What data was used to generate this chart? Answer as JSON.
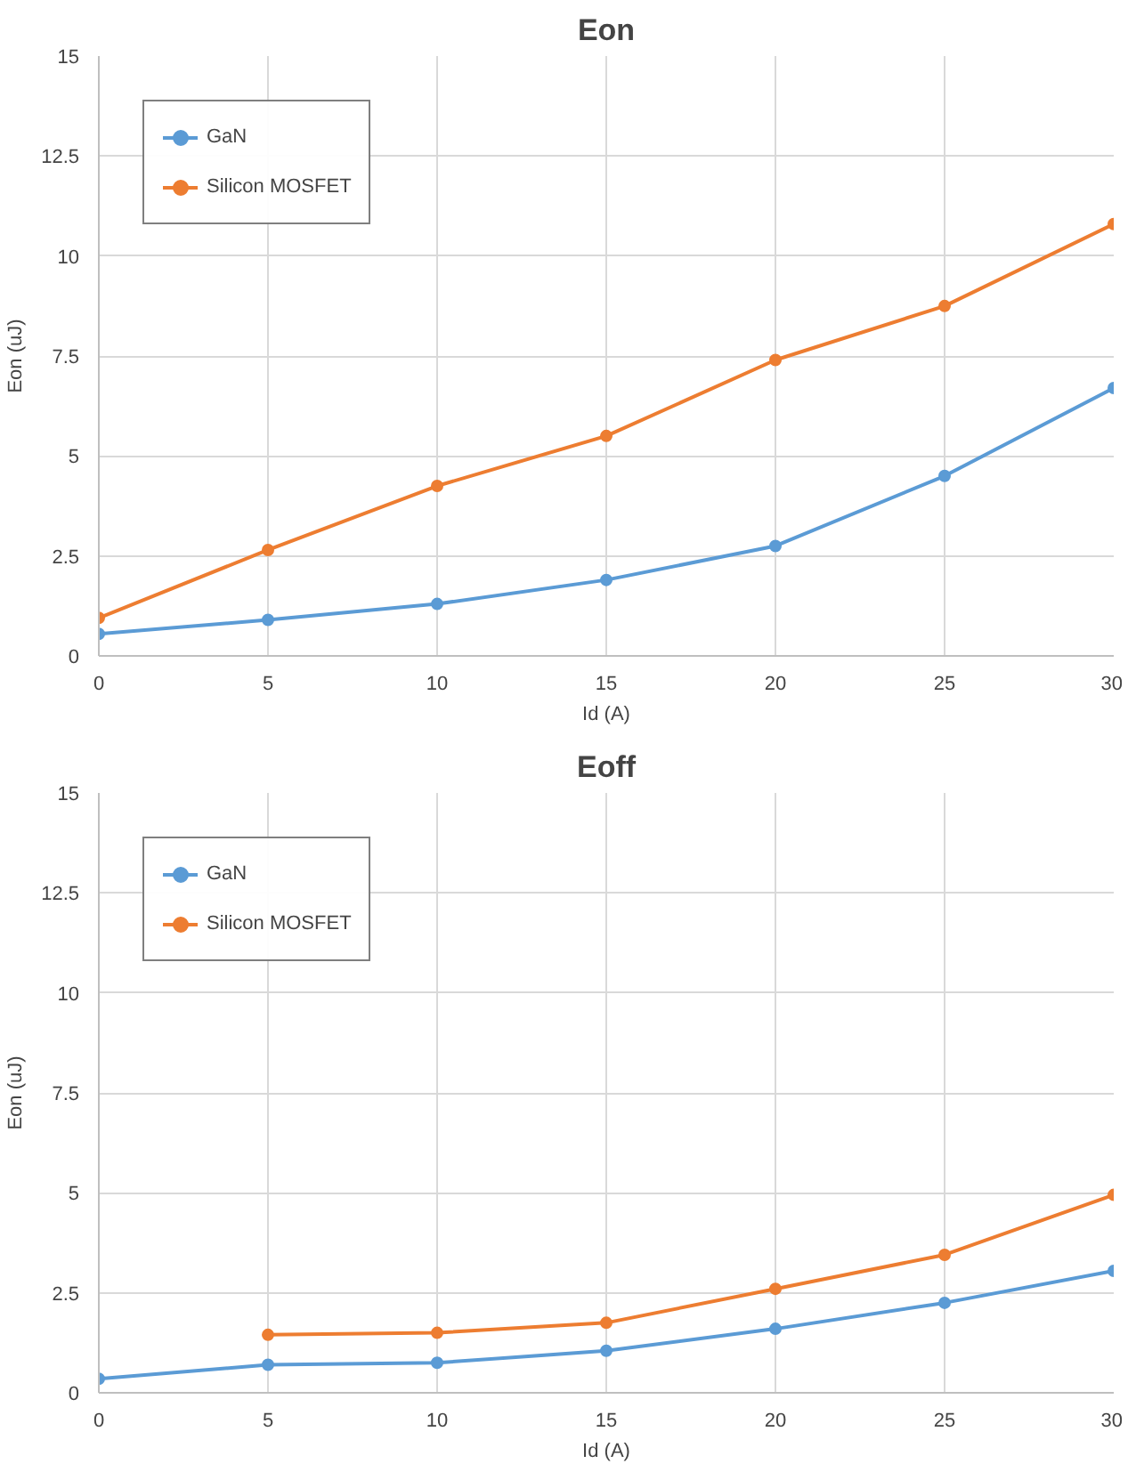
{
  "chart_data": [
    {
      "type": "line",
      "title": "Eon",
      "xlabel": "Id (A)",
      "ylabel": "Eon (uJ)",
      "x": [
        0,
        5,
        10,
        15,
        20,
        25,
        30
      ],
      "series": [
        {
          "name": "GaN",
          "color": "#5b9bd5",
          "values": [
            0.55,
            0.9,
            1.3,
            1.9,
            2.75,
            4.5,
            6.7
          ]
        },
        {
          "name": "Silicon MOSFET",
          "color": "#ed7d31",
          "values": [
            0.95,
            2.65,
            4.25,
            5.5,
            7.4,
            8.75,
            10.8
          ]
        }
      ],
      "xlim": [
        0,
        30
      ],
      "ylim": [
        0,
        15
      ],
      "xticks": [
        0,
        5,
        10,
        15,
        20,
        25,
        30
      ],
      "yticks": [
        0,
        2.5,
        5,
        7.5,
        10,
        12.5,
        15
      ],
      "grid": true,
      "legend": "top left",
      "marker": "circle",
      "line_style": "solid"
    },
    {
      "type": "line",
      "title": "Eoff",
      "xlabel": "Id (A)",
      "ylabel": "Eon (uJ)",
      "x": [
        0,
        5,
        10,
        15,
        20,
        25,
        30
      ],
      "series": [
        {
          "name": "GaN",
          "color": "#5b9bd5",
          "values": [
            0.35,
            0.7,
            0.75,
            1.05,
            1.6,
            2.25,
            3.05
          ]
        },
        {
          "name": "Silicon MOSFET",
          "color": "#ed7d31",
          "values": [
            null,
            1.45,
            1.5,
            1.75,
            2.6,
            3.45,
            4.95
          ]
        }
      ],
      "xlim": [
        0,
        30
      ],
      "ylim": [
        0,
        15
      ],
      "xticks": [
        0,
        5,
        10,
        15,
        20,
        25,
        30
      ],
      "yticks": [
        0,
        2.5,
        5,
        7.5,
        10,
        12.5,
        15
      ],
      "grid": true,
      "legend": "top left",
      "marker": "circle",
      "line_style": "solid"
    }
  ]
}
